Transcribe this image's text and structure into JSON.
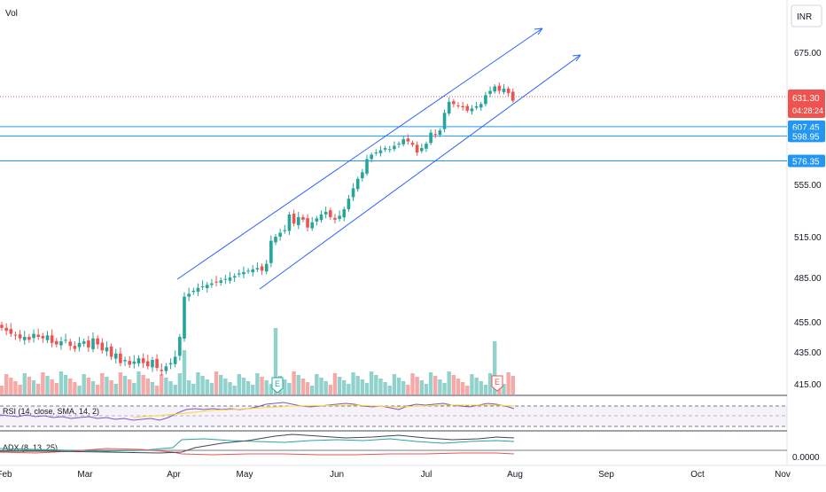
{
  "header": {
    "vol_label": "Vol",
    "currency_label": "INR"
  },
  "indicators": {
    "rsi_label": "RSI (14, close, SMA, 14, 2)",
    "adx_label": "ADX (8, 13, 25)",
    "adx_zero_label": "0.0000"
  },
  "price_tags": [
    {
      "text": "631.30",
      "sub": "04:28:24",
      "color": "#ef5350",
      "kind": "last"
    },
    {
      "text": "607.45",
      "color": "#2196f3",
      "kind": "hline"
    },
    {
      "text": "598.95",
      "color": "#2196f3",
      "kind": "hline"
    },
    {
      "text": "576.35",
      "color": "#2196f3",
      "kind": "hline"
    }
  ],
  "earnings_markers": [
    {
      "label": "E",
      "color": "#26a69a"
    },
    {
      "label": "E",
      "color": "#ef5350"
    }
  ],
  "colors": {
    "up": "#26a69a",
    "down": "#ef5350",
    "trend": "#2962ff",
    "hline": "#2196f3"
  },
  "chart_data": {
    "type": "candlestick",
    "y_ticks": [
      675.0,
      555.0,
      515.0,
      485.0,
      455.0,
      435.0,
      415.0
    ],
    "y_tick_labels": [
      "675.00",
      "555.00",
      "515.00",
      "485.00",
      "455.00",
      "435.00",
      "415.00"
    ],
    "x_tick_labels": [
      "Feb",
      "Mar",
      "Apr",
      "May",
      "Jun",
      "Jul",
      "Aug",
      "Sep",
      "Oct",
      "Nov"
    ],
    "horizontal_lines": [
      607.45,
      598.95,
      576.35
    ],
    "last_price": 631.3,
    "ohlc_close_series": [
      451,
      449,
      447,
      446,
      444,
      445,
      443,
      447,
      445,
      444,
      446,
      441,
      440,
      442,
      443,
      439,
      437,
      441,
      442,
      438,
      444,
      440,
      436,
      438,
      432,
      434,
      428,
      430,
      427,
      429,
      431,
      428,
      426,
      430,
      425,
      423,
      426,
      428,
      432,
      445,
      472,
      474,
      476,
      478,
      479,
      480,
      481,
      482,
      483,
      484,
      485,
      486,
      488,
      489,
      490,
      491,
      492,
      490,
      495,
      512,
      515,
      518,
      520,
      532,
      525,
      530,
      528,
      522,
      526,
      529,
      532,
      534,
      530,
      528,
      531,
      536,
      544,
      552,
      560,
      566,
      578,
      582,
      584,
      586,
      588,
      587,
      590,
      592,
      596,
      594,
      591,
      584,
      588,
      592,
      602,
      600,
      604,
      620,
      630,
      628,
      626,
      625,
      622,
      624,
      626,
      628,
      636,
      640,
      644,
      640,
      642,
      638,
      631
    ]
  }
}
